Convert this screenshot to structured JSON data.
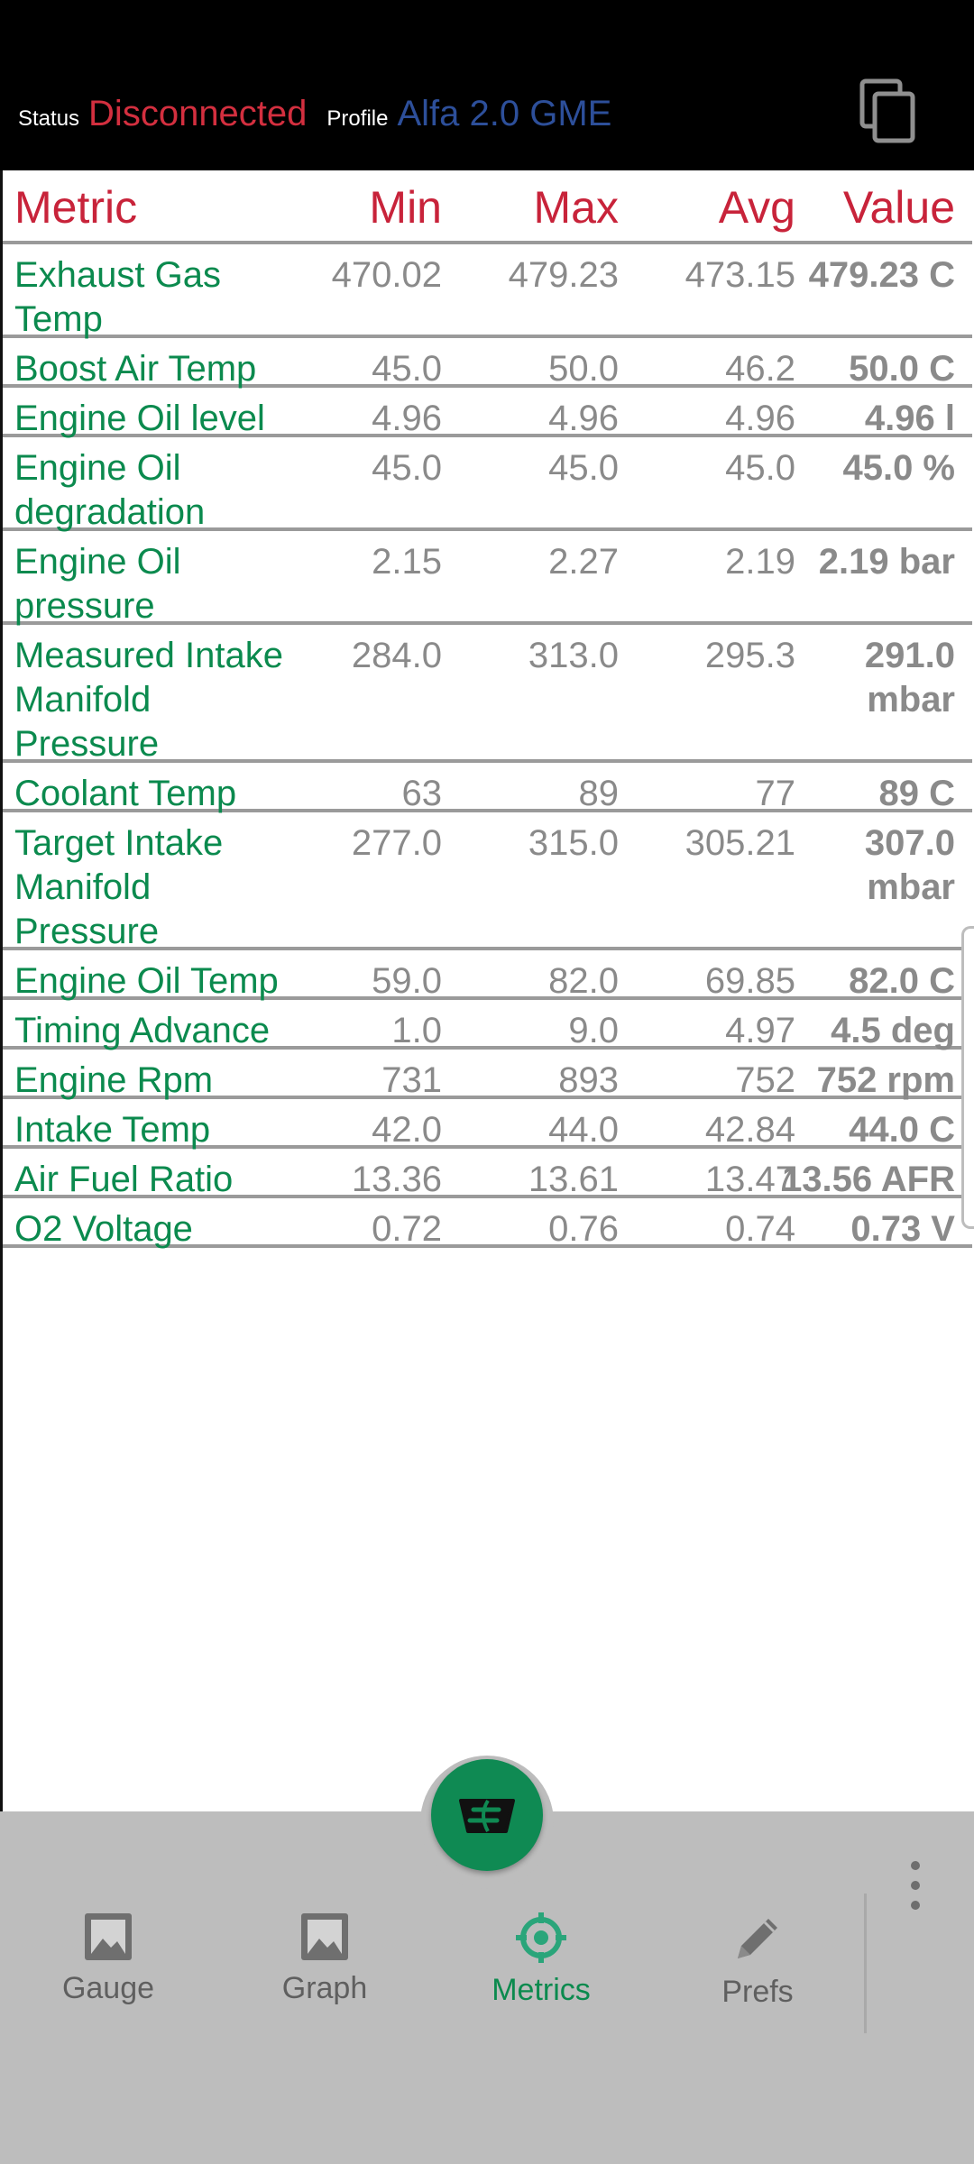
{
  "status": {
    "status_label": "Status",
    "status_value": "Disconnected",
    "profile_label": "Profile",
    "profile_value": "Alfa 2.0 GME"
  },
  "table": {
    "headers": {
      "metric": "Metric",
      "min": "Min",
      "max": "Max",
      "avg": "Avg",
      "value": "Value"
    },
    "rows": [
      {
        "name": "Exhaust Gas Temp",
        "min": "470.02",
        "max": "479.23",
        "avg": "473.15",
        "value": "479.23 C"
      },
      {
        "name": "Boost Air Temp",
        "min": "45.0",
        "max": "50.0",
        "avg": "46.2",
        "value": "50.0 C"
      },
      {
        "name": "Engine Oil level",
        "min": "4.96",
        "max": "4.96",
        "avg": "4.96",
        "value": "4.96 l"
      },
      {
        "name": "Engine Oil degradation",
        "min": "45.0",
        "max": "45.0",
        "avg": "45.0",
        "value": "45.0 %"
      },
      {
        "name": "Engine Oil pressure",
        "min": "2.15",
        "max": "2.27",
        "avg": "2.19",
        "value": "2.19 bar"
      },
      {
        "name": "Measured Intake Manifold Pressure",
        "min": "284.0",
        "max": "313.0",
        "avg": "295.3",
        "value": "291.0 mbar"
      },
      {
        "name": "Coolant Temp",
        "min": "63",
        "max": "89",
        "avg": "77",
        "value": "89 C"
      },
      {
        "name": "Target Intake Manifold Pressure",
        "min": "277.0",
        "max": "315.0",
        "avg": "305.21",
        "value": "307.0 mbar"
      },
      {
        "name": "Engine Oil Temp",
        "min": "59.0",
        "max": "82.0",
        "avg": "69.85",
        "value": "82.0 C"
      },
      {
        "name": "Timing Advance",
        "min": "1.0",
        "max": "9.0",
        "avg": "4.97",
        "value": "4.5 deg"
      },
      {
        "name": "Engine Rpm",
        "min": "731",
        "max": "893",
        "avg": "752",
        "value": "752 rpm"
      },
      {
        "name": "Intake Temp",
        "min": "42.0",
        "max": "44.0",
        "avg": "42.84",
        "value": "44.0 C"
      },
      {
        "name": "Air Fuel Ratio",
        "min": "13.36",
        "max": "13.61",
        "avg": "13.47",
        "value": "13.56 AFR"
      },
      {
        "name": "O2 Voltage",
        "min": "0.72",
        "max": "0.76",
        "avg": "0.74",
        "value": "0.73 V"
      }
    ]
  },
  "nav": {
    "items": [
      {
        "label": "Gauge",
        "icon": "image-icon"
      },
      {
        "label": "Graph",
        "icon": "image-icon"
      },
      {
        "label": "Metrics",
        "icon": "crosshair-icon",
        "active": true
      },
      {
        "label": "Prefs",
        "icon": "pencil-icon"
      }
    ]
  },
  "colors": {
    "accent_green": "#0b8a4e",
    "header_red": "#c8233a",
    "status_red": "#d32f3f",
    "profile_blue": "#2d4f9a",
    "nav_bg": "#bdbdbd"
  }
}
